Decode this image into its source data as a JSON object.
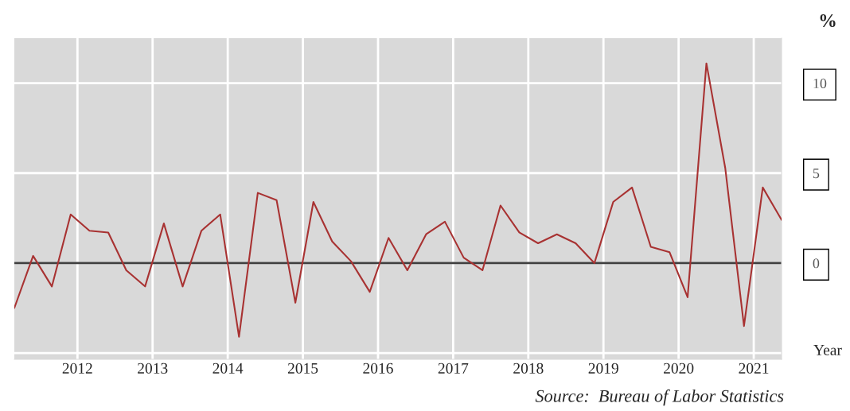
{
  "chart_data": {
    "type": "line",
    "xlabel": "Year",
    "ylabel": "%",
    "x": [
      2011.16,
      2011.41,
      2011.66,
      2011.91,
      2012.16,
      2012.41,
      2012.65,
      2012.9,
      2013.15,
      2013.4,
      2013.65,
      2013.9,
      2014.15,
      2014.4,
      2014.65,
      2014.9,
      2015.14,
      2015.39,
      2015.64,
      2015.89,
      2016.14,
      2016.39,
      2016.64,
      2016.89,
      2017.14,
      2017.39,
      2017.63,
      2017.88,
      2018.13,
      2018.38,
      2018.63,
      2018.88,
      2019.13,
      2019.38,
      2019.63,
      2019.88,
      2020.12,
      2020.37,
      2020.62,
      2020.87,
      2021.12,
      2021.37
    ],
    "series": [
      {
        "color": "#a83232",
        "values": [
          -2.5,
          0.4,
          -1.3,
          2.7,
          1.8,
          1.7,
          -0.4,
          -1.3,
          2.2,
          -1.3,
          1.8,
          2.7,
          -4.1,
          3.9,
          3.5,
          -2.2,
          3.4,
          1.2,
          0.1,
          -1.6,
          1.4,
          -0.4,
          1.6,
          2.3,
          0.3,
          -0.4,
          3.2,
          1.7,
          1.1,
          1.6,
          1.1,
          0.0,
          3.4,
          4.2,
          0.9,
          0.6,
          -1.9,
          11.1,
          5.3,
          -3.5,
          4.2,
          2.4
        ]
      }
    ],
    "xlim": [
      2011.16,
      2021.37
    ],
    "xticks": [
      2012,
      2013,
      2014,
      2015,
      2016,
      2017,
      2018,
      2019,
      2020,
      2021
    ],
    "ylim": [
      -5.35,
      12.5
    ],
    "yticks": [
      {
        "value": -5,
        "label": null
      },
      0,
      5,
      10
    ],
    "ref_lines": [
      {
        "axis": "y",
        "value": 0,
        "color": "#404040"
      }
    ],
    "grid": true,
    "legend": false,
    "marker": "none",
    "line_style": "solid",
    "annotations": [
      "Source:  Bureau of Labor Statistics"
    ]
  }
}
